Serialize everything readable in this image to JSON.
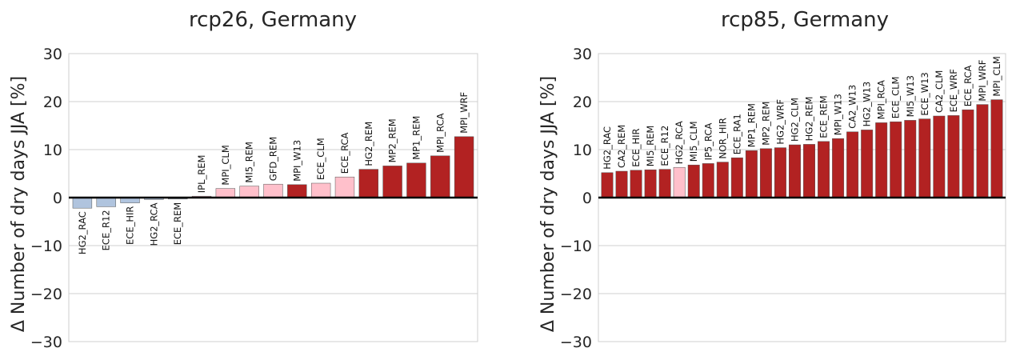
{
  "chart_data": [
    {
      "type": "bar",
      "title": "rcp26, Germany",
      "ylabel": "Δ Number of dry days JJA [%]",
      "ylim": [
        -30,
        30
      ],
      "yticks": [
        -30,
        -20,
        -10,
        0,
        10,
        20,
        30
      ],
      "ytick_labels": [
        "−30",
        "−20",
        "−10",
        "0",
        "10",
        "20",
        "30"
      ],
      "grid": true,
      "colors": {
        "light_blue": "#b0c4de",
        "pink": "#ffc0cb",
        "dark_red": "#b22222"
      },
      "categories": [
        "HG2_RAC",
        "ECE_R12",
        "ECE_HIR",
        "HG2_RCA",
        "ECE_REM",
        "IPL_REM",
        "MPI_CLM",
        "MI5_REM",
        "GFD_REM",
        "MPI_W13",
        "ECE_CLM",
        "ECE_RCA",
        "HG2_REM",
        "MP2_REM",
        "MP1_REM",
        "MPI_RCA",
        "MPI_WRF"
      ],
      "values": [
        -2.2,
        -1.9,
        -1.1,
        -0.4,
        -0.3,
        0.3,
        1.9,
        2.4,
        2.8,
        2.7,
        3.0,
        4.3,
        5.9,
        6.6,
        7.2,
        8.7,
        12.7
      ],
      "bar_colors": [
        "light_blue",
        "light_blue",
        "light_blue",
        "light_blue",
        "light_blue",
        "pink",
        "pink",
        "pink",
        "pink",
        "dark_red",
        "pink",
        "pink",
        "dark_red",
        "dark_red",
        "dark_red",
        "dark_red",
        "dark_red"
      ]
    },
    {
      "type": "bar",
      "title": "rcp85, Germany",
      "ylabel": "Δ Number of dry days JJA [%]",
      "ylim": [
        -30,
        30
      ],
      "yticks": [
        -30,
        -20,
        -10,
        0,
        10,
        20,
        30
      ],
      "ytick_labels": [
        "−30",
        "−20",
        "−10",
        "0",
        "10",
        "20",
        "30"
      ],
      "grid": true,
      "colors": {
        "light_blue": "#b0c4de",
        "pink": "#ffc0cb",
        "dark_red": "#b22222"
      },
      "categories": [
        "HG2_RAC",
        "CA2_REM",
        "ECE_HIR",
        "MI5_REM",
        "ECE_R12",
        "HG2_RCA",
        "MI5_CLM",
        "IP5_RCA",
        "NOR_HIR",
        "ECE_RA1",
        "MP1_REM",
        "MP2_REM",
        "HG2_WRF",
        "HG2_CLM",
        "HG2_REM",
        "ECE_REM",
        "MPI_W13",
        "CA2_W13",
        "HG2_W13",
        "MPI_RCA",
        "ECE_CLM",
        "MI5_W13",
        "ECE_W13",
        "CA2_CLM",
        "ECE_WRF",
        "ECE_RCA",
        "MPI_WRF",
        "MPI_CLM"
      ],
      "values": [
        5.2,
        5.5,
        5.7,
        5.8,
        5.9,
        6.3,
        6.8,
        7.1,
        7.4,
        8.3,
        9.8,
        10.2,
        10.4,
        11.0,
        11.1,
        11.7,
        12.3,
        13.7,
        14.1,
        15.6,
        15.8,
        16.1,
        16.4,
        17.0,
        17.1,
        18.3,
        19.4,
        20.4
      ],
      "bar_colors": [
        "dark_red",
        "dark_red",
        "dark_red",
        "dark_red",
        "dark_red",
        "pink",
        "dark_red",
        "dark_red",
        "dark_red",
        "dark_red",
        "dark_red",
        "dark_red",
        "dark_red",
        "dark_red",
        "dark_red",
        "dark_red",
        "dark_red",
        "dark_red",
        "dark_red",
        "dark_red",
        "dark_red",
        "dark_red",
        "dark_red",
        "dark_red",
        "dark_red",
        "dark_red",
        "dark_red",
        "dark_red"
      ]
    }
  ]
}
